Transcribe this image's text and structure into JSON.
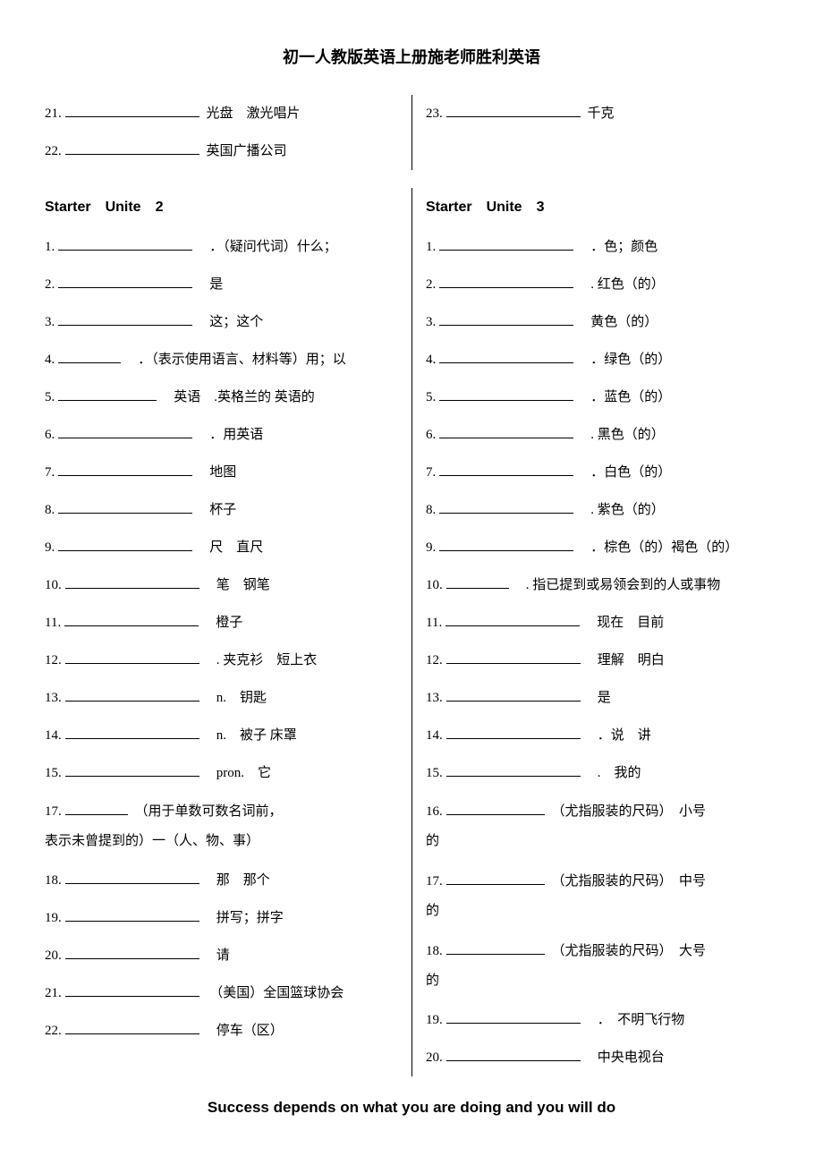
{
  "header": "初一人教版英语上册施老师胜利英语",
  "footer": "Success depends on what you are doing and you will do",
  "top_left": [
    {
      "num": "21.",
      "def": "光盘　激光唱片"
    },
    {
      "num": "22.",
      "def": "英国广播公司"
    }
  ],
  "top_right": [
    {
      "num": "23.",
      "def": "千克"
    }
  ],
  "section2_title": "Starter　Unite　2",
  "section3_title": "Starter　Unite　3",
  "col_left": [
    {
      "num": "1.",
      "def": "．（疑问代词）什么；",
      "blank": "blank"
    },
    {
      "num": "2.",
      "def": "是",
      "blank": "blank"
    },
    {
      "num": "3.",
      "def": "这；这个",
      "blank": "blank"
    },
    {
      "num": "4.",
      "def": "．（表示使用语言、材料等）用；以",
      "blank": "blank-sm"
    },
    {
      "num": "5.",
      "def": "英语　.英格兰的 英语的",
      "blank": "blank-md"
    },
    {
      "num": "6.",
      "def": "．用英语",
      "blank": "blank"
    },
    {
      "num": "7.",
      "def": "地图",
      "blank": "blank"
    },
    {
      "num": "8.",
      "def": "杯子",
      "blank": "blank"
    },
    {
      "num": "9.",
      "def": "尺　直尺",
      "blank": "blank"
    },
    {
      "num": "10.",
      "def": "笔　钢笔",
      "blank": "blank"
    },
    {
      "num": "11.",
      "def": "橙子",
      "blank": "blank"
    },
    {
      "num": "12.",
      "def": ". 夹克衫　短上衣",
      "blank": "blank"
    },
    {
      "num": "13.",
      "def": "n.　钥匙",
      "blank": "blank"
    },
    {
      "num": "14.",
      "def": "n.　被子 床罩",
      "blank": "blank"
    },
    {
      "num": "15.",
      "def": "pron.　它",
      "blank": "blank"
    }
  ],
  "col_left_17": {
    "num": "17.",
    "def1": "（用于单数可数名词前，",
    "def2": "表示未曾提到的）一（人、物、事）"
  },
  "col_left_tail": [
    {
      "num": "18.",
      "def": "那　那个",
      "blank": "blank"
    },
    {
      "num": "19.",
      "def": "拼写；拼字",
      "blank": "blank"
    },
    {
      "num": "20.",
      "def": "请",
      "blank": "blank"
    },
    {
      "num": "21.",
      "def": "（美国）全国篮球协会",
      "blank": "blank"
    },
    {
      "num": "22.",
      "def": "停车（区）",
      "blank": "blank"
    }
  ],
  "col_right": [
    {
      "num": "1.",
      "def": "．色；颜色",
      "blank": "blank"
    },
    {
      "num": "2.",
      "def": ". 红色（的）",
      "blank": "blank"
    },
    {
      "num": "3.",
      "def": "黄色（的）",
      "blank": "blank"
    },
    {
      "num": "4.",
      "def": "．绿色（的）",
      "blank": "blank"
    },
    {
      "num": "5.",
      "def": "．蓝色（的）",
      "blank": "blank"
    },
    {
      "num": "6.",
      "def": ". 黑色（的）",
      "blank": "blank"
    },
    {
      "num": "7.",
      "def": "．白色（的）",
      "blank": "blank"
    },
    {
      "num": "8.",
      "def": ". 紫色（的）",
      "blank": "blank"
    },
    {
      "num": "9.",
      "def": "．棕色（的）褐色（的）",
      "blank": "blank"
    },
    {
      "num": "10.",
      "def": ". 指已提到或易领会到的人或事物",
      "blank": "blank-sm"
    },
    {
      "num": "11.",
      "def": "现在　目前",
      "blank": "blank"
    },
    {
      "num": "12.",
      "def": "理解　明白",
      "blank": "blank"
    },
    {
      "num": "13.",
      "def": "是",
      "blank": "blank"
    },
    {
      "num": "14.",
      "def": "．说　讲",
      "blank": "blank"
    },
    {
      "num": "15.",
      "def": ".　我的",
      "blank": "blank"
    }
  ],
  "col_right_16": {
    "num": "16.",
    "def1": "（尤指服装的尺码）　小号",
    "def2": "的"
  },
  "col_right_17": {
    "num": "17.",
    "def1": "（尤指服装的尺码）　中号",
    "def2": "的"
  },
  "col_right_18": {
    "num": "18.",
    "def1": "（尤指服装的尺码）　大号",
    "def2": "的"
  },
  "col_right_tail": [
    {
      "num": "19.",
      "def": "．　不明飞行物",
      "blank": "blank"
    },
    {
      "num": "20.",
      "def": "中央电视台",
      "blank": "blank"
    }
  ]
}
